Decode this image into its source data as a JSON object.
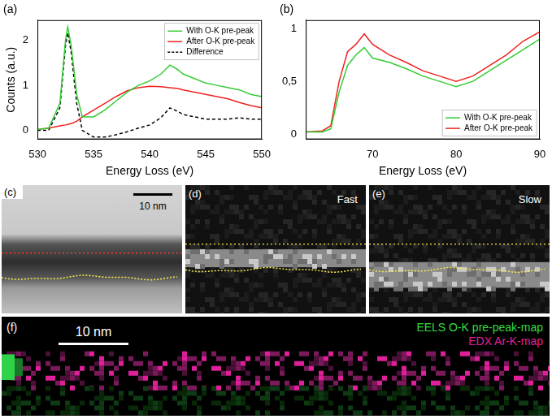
{
  "chart_data": [
    {
      "type": "line",
      "title": "(a)",
      "x_label": "Energy Loss (eV)",
      "y_label": "Counts (a.u.)",
      "x": [
        530,
        531,
        532,
        532.5,
        532.7,
        533,
        533.5,
        534,
        535,
        536,
        537,
        538,
        539,
        540,
        541,
        541.8,
        542.5,
        543,
        544,
        545,
        546,
        547,
        548,
        549,
        550
      ],
      "series": [
        {
          "name": "With O-K pre-peak",
          "color": "#33cc33",
          "line_style": "solid",
          "values": [
            0.02,
            0.05,
            0.6,
            2.0,
            2.3,
            1.9,
            0.8,
            0.3,
            0.3,
            0.45,
            0.65,
            0.85,
            1.0,
            1.1,
            1.25,
            1.45,
            1.35,
            1.25,
            1.15,
            1.05,
            1.0,
            0.95,
            0.9,
            0.8,
            0.75
          ]
        },
        {
          "name": "After O-K pre-peak",
          "color": "#ee2222",
          "line_style": "solid",
          "values": [
            0.02,
            0.05,
            0.1,
            0.12,
            0.13,
            0.15,
            0.2,
            0.3,
            0.45,
            0.6,
            0.75,
            0.88,
            0.95,
            0.98,
            0.97,
            0.95,
            0.93,
            0.9,
            0.85,
            0.8,
            0.75,
            0.7,
            0.62,
            0.55,
            0.5
          ]
        },
        {
          "name": "Difference",
          "color": "#000000",
          "line_style": "dashed",
          "values": [
            0,
            0,
            0.5,
            1.88,
            2.17,
            1.75,
            0.6,
            0,
            -0.15,
            -0.15,
            -0.1,
            -0.03,
            0.05,
            0.12,
            0.28,
            0.5,
            0.42,
            0.35,
            0.3,
            0.25,
            0.25,
            0.25,
            0.28,
            0.25,
            0.25
          ]
        }
      ],
      "xlim": [
        530,
        550
      ],
      "xticks": [
        530,
        535,
        540,
        545,
        550
      ],
      "ylim": [
        -0.2,
        2.45
      ],
      "yticks": [
        0,
        1,
        2
      ],
      "grid": false,
      "legend": "upper right"
    },
    {
      "type": "line",
      "title": "(b)",
      "x_label": "Energy Loss (eV)",
      "x": [
        62,
        64,
        65,
        66,
        67,
        68,
        69,
        70,
        72,
        74,
        76,
        78,
        80,
        82,
        84,
        86,
        88,
        90
      ],
      "series": [
        {
          "name": "With O-K pre-peak",
          "color": "#33cc33",
          "line_style": "solid",
          "values": [
            0.02,
            0.02,
            0.05,
            0.4,
            0.65,
            0.75,
            0.82,
            0.72,
            0.68,
            0.62,
            0.55,
            0.5,
            0.45,
            0.5,
            0.6,
            0.7,
            0.8,
            0.9
          ]
        },
        {
          "name": "After O-K pre-peak",
          "color": "#ee2222",
          "line_style": "solid",
          "values": [
            0.02,
            0.03,
            0.08,
            0.5,
            0.78,
            0.85,
            0.95,
            0.85,
            0.75,
            0.68,
            0.6,
            0.55,
            0.5,
            0.55,
            0.65,
            0.75,
            0.88,
            0.97
          ]
        }
      ],
      "xlim": [
        62,
        90
      ],
      "xticks": [
        70,
        80,
        90
      ],
      "ylim": [
        -0.05,
        1.08
      ],
      "yticks": [
        0,
        {
          "value": 0.5,
          "label": "0,5"
        },
        1
      ],
      "grid": false,
      "legend": "lower right"
    }
  ],
  "image_panels": [
    {
      "label": "(c)",
      "scale_bar": "10 nm"
    },
    {
      "label": "(d)",
      "caption": "Fast"
    },
    {
      "label": "(e)",
      "caption": "Slow"
    },
    {
      "label": "(f)",
      "scale_bar": "10 nm",
      "legend": [
        {
          "name": "EELS O-K pre-peak-map",
          "color": "#33dd44"
        },
        {
          "name": "EDX Ar-K-map",
          "color": "#e0209a"
        }
      ]
    }
  ]
}
